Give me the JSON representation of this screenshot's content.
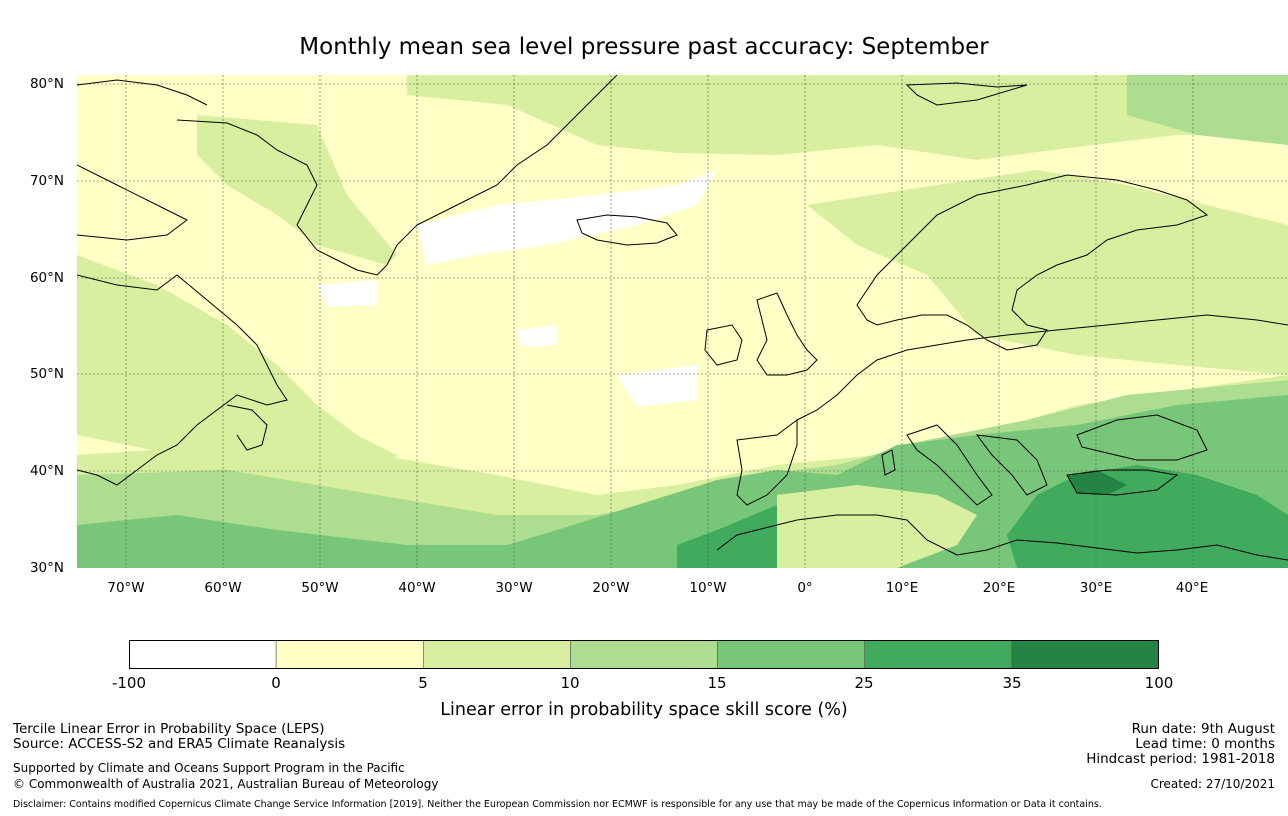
{
  "title": "Monthly mean sea level pressure past accuracy: September",
  "axes": {
    "lat_labels": [
      "80°N",
      "70°N",
      "60°N",
      "50°N",
      "40°N",
      "30°N"
    ],
    "lon_labels": [
      "70°W",
      "60°W",
      "50°W",
      "40°W",
      "30°W",
      "20°W",
      "10°W",
      "0°",
      "10°E",
      "20°E",
      "30°E",
      "40°E"
    ]
  },
  "colorbar": {
    "ticks": [
      "-100",
      "0",
      "5",
      "10",
      "15",
      "25",
      "35",
      "100"
    ],
    "colors": [
      "#ffffff",
      "#ffffc6",
      "#d9efa0",
      "#addd8e",
      "#78c679",
      "#41ab5d",
      "#238443"
    ],
    "label": "Linear error in probability space skill score (%)"
  },
  "footer": {
    "left_line1": "Tercile Linear Error in Probability Space (LEPS)",
    "left_line2": "Source: ACCESS-S2 and ERA5 Climate Reanalysis",
    "left_line3": "Supported by Climate and Oceans Support Program in the Pacific",
    "left_line4": "© Commonwealth of Australia 2021, Australian Bureau of Meteorology",
    "run_date": "Run date: 9th August",
    "lead_time": "Lead time: 0 months",
    "hindcast": "Hindcast period: 1981-2018",
    "created": "Created: 27/10/2021",
    "disclaimer": "Disclaimer: Contains modified Copernicus Climate Change Service Information [2019]. Neither the European Commission nor ECMWF is responsible for any use that may be made of the Copernicus Information or Data it contains."
  }
}
